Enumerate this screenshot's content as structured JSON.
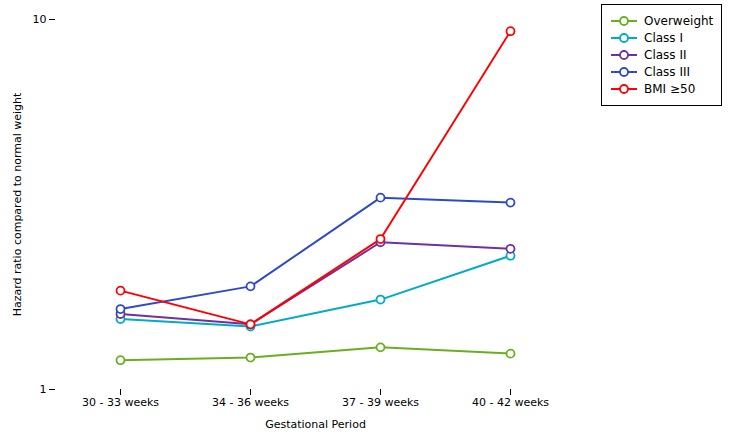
{
  "chart_data": {
    "type": "line",
    "categories": [
      "30 - 33 weeks",
      "34 - 36 weeks",
      "37 - 39 weeks",
      "40 - 42 weeks"
    ],
    "series": [
      {
        "name": "Overweight",
        "color": "#6AAF1E",
        "values": [
          1.2,
          1.22,
          1.3,
          1.25
        ]
      },
      {
        "name": "Class I",
        "color": "#00AACC",
        "values": [
          1.55,
          1.48,
          1.75,
          2.3
        ]
      },
      {
        "name": "Class II",
        "color": "#7030A0",
        "values": [
          1.6,
          1.5,
          2.5,
          2.4
        ]
      },
      {
        "name": "Class III",
        "color": "#2E4BC6",
        "values": [
          1.65,
          1.9,
          3.3,
          3.2
        ]
      },
      {
        "name": "BMI ≥50",
        "color": "#FF0000",
        "values": [
          1.85,
          1.5,
          2.55,
          9.3
        ]
      }
    ],
    "xlabel": "Gestational Period",
    "ylabel": "Hazard ratio compared to normal weight",
    "log": "y",
    "ylim": [
      1,
      10
    ],
    "yticks": [
      1,
      10
    ],
    "marker": "circle",
    "grid": false,
    "legend": "upper right"
  }
}
